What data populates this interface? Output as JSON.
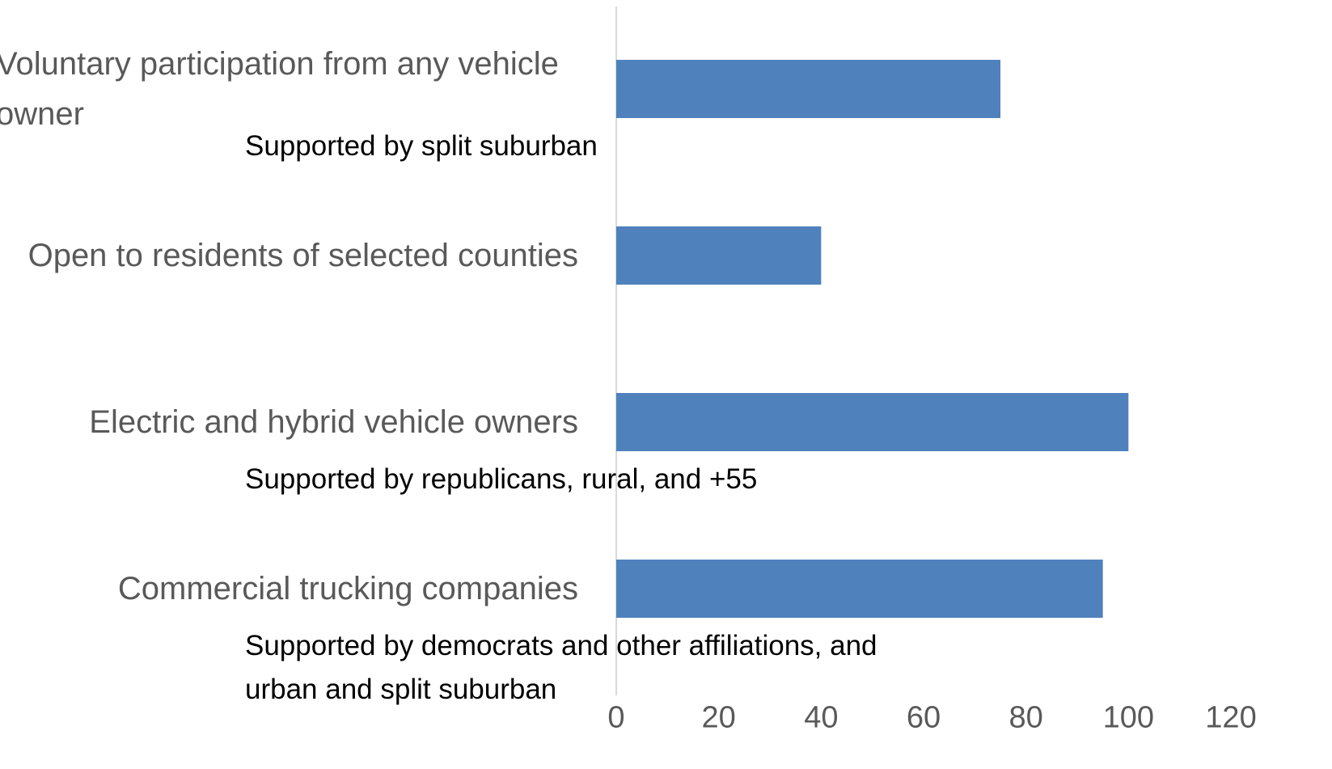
{
  "chart_data": {
    "type": "bar",
    "orientation": "horizontal",
    "categories": [
      "Voluntary participation from any vehicle owner",
      "Open to residents of selected counties",
      "Electric and hybrid vehicle owners",
      "Commercial trucking companies"
    ],
    "values": [
      75,
      40,
      100,
      95
    ],
    "annotations": [
      "Supported by split suburban",
      null,
      "Supported by republicans, rural, and +55",
      "Supported by democrats and other affiliations, and urban and split suburban"
    ],
    "color": "#4f81bd",
    "xlim": [
      0,
      120
    ],
    "xticks": [
      0,
      20,
      40,
      60,
      80,
      100,
      120
    ],
    "grid": false
  }
}
